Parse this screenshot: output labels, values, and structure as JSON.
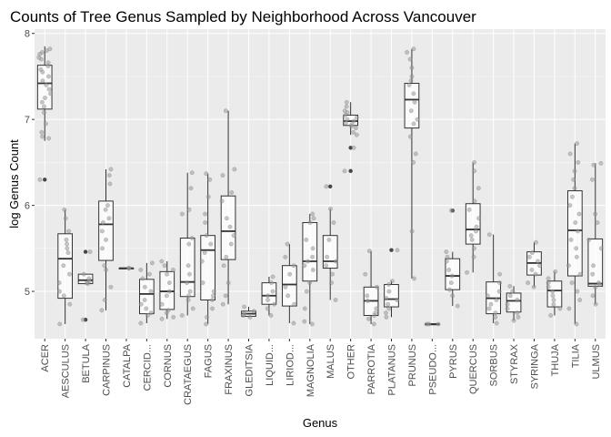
{
  "chart_data": {
    "type": "boxplot",
    "title": "Counts of Tree Genus Sampled by Neighborhood Across Vancouver",
    "xlabel": "Genus",
    "ylabel": "log Genus Count",
    "ylim": [
      4.45,
      8.05
    ],
    "y_ticks": [
      5,
      6,
      7,
      8
    ],
    "grid": true,
    "panel_background": "#ebebeb",
    "grid_color": "#ffffff",
    "box_fill": "#ffffff",
    "line_color": "#333333",
    "point_color": "#999999",
    "categories": [
      "ACER",
      "AESCULUS",
      "BETULA",
      "CARPINUS",
      "CATALPA",
      "CERCID...",
      "CORNUS",
      "CRATAEGUS",
      "FAGUS",
      "FRAXINUS",
      "GLEDITSIA",
      "LIQUID...",
      "LIRIOD...",
      "MAGNOLIA",
      "MALUS",
      "OTHER",
      "PARROTIA",
      "PLATANUS",
      "PRUNUS",
      "PSEUDO...",
      "PYRUS",
      "QUERCUS",
      "SORBUS",
      "STYRAX",
      "SYRINGA",
      "THUJA",
      "TILIA",
      "ULMUS"
    ],
    "boxes": [
      {
        "min": 6.75,
        "q1": 7.12,
        "median": 7.42,
        "q3": 7.63,
        "max": 7.85,
        "outliers": [
          6.3
        ]
      },
      {
        "min": 4.62,
        "q1": 4.92,
        "median": 5.38,
        "q3": 5.67,
        "max": 5.95,
        "outliers": []
      },
      {
        "min": 5.08,
        "q1": 5.09,
        "median": 5.13,
        "q3": 5.2,
        "max": 5.2,
        "outliers": [
          4.67,
          5.46
        ]
      },
      {
        "min": 4.78,
        "q1": 5.36,
        "median": 5.78,
        "q3": 6.05,
        "max": 6.42,
        "outliers": []
      },
      {
        "min": 5.27,
        "q1": 5.27,
        "median": 5.27,
        "q3": 5.27,
        "max": 5.27,
        "outliers": []
      },
      {
        "min": 4.63,
        "q1": 4.74,
        "median": 4.97,
        "q3": 5.14,
        "max": 5.33,
        "outliers": []
      },
      {
        "min": 4.68,
        "q1": 4.79,
        "median": 5.0,
        "q3": 5.23,
        "max": 5.35,
        "outliers": []
      },
      {
        "min": 4.72,
        "q1": 4.94,
        "median": 5.11,
        "q3": 5.62,
        "max": 6.38,
        "outliers": []
      },
      {
        "min": 4.62,
        "q1": 4.9,
        "median": 5.48,
        "q3": 5.65,
        "max": 6.37,
        "outliers": []
      },
      {
        "min": 4.85,
        "q1": 5.37,
        "median": 5.7,
        "q3": 6.11,
        "max": 7.1,
        "outliers": []
      },
      {
        "min": 4.7,
        "q1": 4.71,
        "median": 4.74,
        "q3": 4.77,
        "max": 4.82,
        "outliers": []
      },
      {
        "min": 4.72,
        "q1": 4.85,
        "median": 4.95,
        "q3": 5.1,
        "max": 5.17,
        "outliers": []
      },
      {
        "min": 4.63,
        "q1": 4.83,
        "median": 5.08,
        "q3": 5.3,
        "max": 5.55,
        "outliers": []
      },
      {
        "min": 4.62,
        "q1": 5.12,
        "median": 5.35,
        "q3": 5.8,
        "max": 5.9,
        "outliers": []
      },
      {
        "min": 4.9,
        "q1": 5.27,
        "median": 5.35,
        "q3": 5.65,
        "max": 5.96,
        "outliers": [
          6.22
        ]
      },
      {
        "min": 6.82,
        "q1": 6.93,
        "median": 6.98,
        "q3": 7.05,
        "max": 7.2,
        "outliers": [
          6.4,
          6.67
        ]
      },
      {
        "min": 4.62,
        "q1": 4.72,
        "median": 4.89,
        "q3": 5.05,
        "max": 5.47,
        "outliers": []
      },
      {
        "min": 4.7,
        "q1": 4.82,
        "median": 4.91,
        "q3": 5.08,
        "max": 5.12,
        "outliers": [
          5.48
        ]
      },
      {
        "min": 5.15,
        "q1": 6.9,
        "median": 7.23,
        "q3": 7.42,
        "max": 7.82,
        "outliers": []
      },
      {
        "min": 4.62,
        "q1": 4.62,
        "median": 4.62,
        "q3": 4.62,
        "max": 4.62,
        "outliers": []
      },
      {
        "min": 4.83,
        "q1": 5.02,
        "median": 5.18,
        "q3": 5.38,
        "max": 5.46,
        "outliers": [
          5.94
        ]
      },
      {
        "min": 5.22,
        "q1": 5.55,
        "median": 5.72,
        "q3": 6.02,
        "max": 6.5,
        "outliers": []
      },
      {
        "min": 4.63,
        "q1": 4.74,
        "median": 4.92,
        "q3": 5.11,
        "max": 5.66,
        "outliers": []
      },
      {
        "min": 4.66,
        "q1": 4.76,
        "median": 4.89,
        "q3": 4.98,
        "max": 5.06,
        "outliers": []
      },
      {
        "min": 5.05,
        "q1": 5.19,
        "median": 5.33,
        "q3": 5.46,
        "max": 5.57,
        "outliers": []
      },
      {
        "min": 4.72,
        "q1": 4.82,
        "median": 5.01,
        "q3": 5.12,
        "max": 5.23,
        "outliers": []
      },
      {
        "min": 4.62,
        "q1": 5.18,
        "median": 5.71,
        "q3": 6.17,
        "max": 6.72,
        "outliers": []
      },
      {
        "min": 4.85,
        "q1": 5.06,
        "median": 5.09,
        "q3": 5.61,
        "max": 6.49,
        "outliers": []
      }
    ],
    "points": [
      [
        7.8,
        7.82,
        7.78,
        7.76,
        7.7,
        7.62,
        7.58,
        7.55,
        7.5,
        7.45,
        7.4,
        7.35,
        7.3,
        7.25,
        7.2,
        7.15,
        7.08,
        6.95,
        6.85,
        6.78,
        6.3,
        7.66,
        7.72,
        6.8
      ],
      [
        5.95,
        5.85,
        5.6,
        5.5,
        5.45,
        5.3,
        5.2,
        5.1,
        5.0,
        4.95,
        4.85,
        4.62,
        5.7,
        5.55
      ],
      [
        5.46,
        5.2,
        5.15,
        5.12,
        5.1,
        5.09,
        4.67
      ],
      [
        6.42,
        6.35,
        6.25,
        6.0,
        5.95,
        5.85,
        5.8,
        5.7,
        5.6,
        5.5,
        5.3,
        5.25,
        5.05,
        4.9,
        4.78
      ],
      [
        5.27,
        5.27
      ],
      [
        5.33,
        5.25,
        5.2,
        5.15,
        5.05,
        5.0,
        4.9,
        4.85,
        4.8,
        4.75,
        4.72,
        4.63
      ],
      [
        5.35,
        5.3,
        5.25,
        5.2,
        5.1,
        5.0,
        4.95,
        4.85,
        4.78,
        4.75,
        4.7,
        4.68
      ],
      [
        6.38,
        6.2,
        5.95,
        5.9,
        5.62,
        5.55,
        5.3,
        5.2,
        5.1,
        5.0,
        4.95,
        4.9,
        4.8,
        4.72
      ],
      [
        6.37,
        6.3,
        6.1,
        5.9,
        5.8,
        5.65,
        5.55,
        5.45,
        5.35,
        5.1,
        5.0,
        4.95,
        4.9,
        4.8,
        4.7,
        4.62
      ],
      [
        7.1,
        6.42,
        6.35,
        6.15,
        6.05,
        5.85,
        5.75,
        5.65,
        5.55,
        5.4,
        5.3,
        5.1,
        4.95,
        4.85
      ],
      [
        4.82,
        4.77,
        4.74,
        4.72,
        4.7
      ],
      [
        5.17,
        5.1,
        5.0,
        4.95,
        4.9,
        4.85,
        4.8,
        4.72
      ],
      [
        5.55,
        5.4,
        5.3,
        5.2,
        5.05,
        4.95,
        4.85,
        4.63
      ],
      [
        5.9,
        5.85,
        5.8,
        5.6,
        5.5,
        5.4,
        5.35,
        5.3,
        5.25,
        5.1,
        5.0,
        4.8,
        4.65,
        4.62
      ],
      [
        6.22,
        5.96,
        5.8,
        5.6,
        5.4,
        5.35,
        5.3,
        5.2,
        5.1,
        4.9
      ],
      [
        7.2,
        7.15,
        7.1,
        7.08,
        7.05,
        7.02,
        7.0,
        6.98,
        6.96,
        6.94,
        6.92,
        6.9,
        6.85,
        6.82,
        6.67,
        6.4
      ],
      [
        5.47,
        5.2,
        5.05,
        4.95,
        4.89,
        4.8,
        4.75,
        4.72,
        4.68,
        4.62
      ],
      [
        5.48,
        5.12,
        5.08,
        5.0,
        4.92,
        4.9,
        4.85,
        4.8,
        4.75,
        4.7
      ],
      [
        7.82,
        7.78,
        7.7,
        7.6,
        7.5,
        7.45,
        7.4,
        7.3,
        7.2,
        7.1,
        7.0,
        6.95,
        6.8,
        6.6,
        6.5,
        5.7,
        5.15
      ],
      [
        4.62,
        4.62,
        4.62
      ],
      [
        5.94,
        5.46,
        5.4,
        5.35,
        5.25,
        5.18,
        5.1,
        5.02,
        4.95,
        4.83
      ],
      [
        6.5,
        6.4,
        6.2,
        6.05,
        5.95,
        5.85,
        5.75,
        5.7,
        5.65,
        5.6,
        5.5,
        5.4,
        5.22
      ],
      [
        5.66,
        5.2,
        5.1,
        5.0,
        4.95,
        4.9,
        4.85,
        4.8,
        4.75,
        4.7,
        4.63
      ],
      [
        5.06,
        5.0,
        4.95,
        4.9,
        4.85,
        4.8,
        4.75,
        4.7,
        4.66
      ],
      [
        5.57,
        5.45,
        5.4,
        5.35,
        5.3,
        5.25,
        5.2,
        5.1,
        5.05
      ],
      [
        5.23,
        5.15,
        5.1,
        5.05,
        5.0,
        4.95,
        4.9,
        4.85,
        4.8,
        4.72
      ],
      [
        6.72,
        6.6,
        6.5,
        6.4,
        6.3,
        6.2,
        6.1,
        6.0,
        5.9,
        5.8,
        5.7,
        5.6,
        5.5,
        5.4,
        5.3,
        5.2,
        5.1,
        5.0,
        4.9,
        4.8,
        4.62
      ],
      [
        6.49,
        6.47,
        6.3,
        5.9,
        5.8,
        5.6,
        5.5,
        5.3,
        5.2,
        5.1,
        5.08,
        5.05,
        4.95,
        4.85
      ]
    ]
  }
}
